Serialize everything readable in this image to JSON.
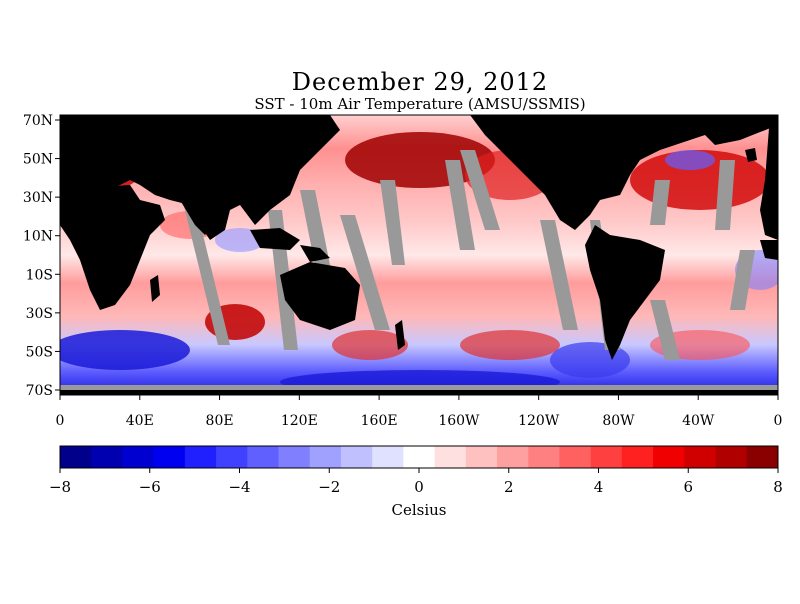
{
  "title": "December 29, 2012",
  "subtitle": "SST - 10m Air Temperature (AMSU/SSMIS)",
  "map": {
    "lat_ticks": [
      "70N",
      "50N",
      "30N",
      "10N",
      "10S",
      "30S",
      "50S",
      "70S"
    ],
    "lon_ticks": [
      "0",
      "40E",
      "80E",
      "120E",
      "160E",
      "160W",
      "120W",
      "80W",
      "40W",
      "0"
    ],
    "colors": {
      "land": "#000000",
      "missing_data": "#999999",
      "warm": "#cc0000",
      "cool": "#0000cc"
    }
  },
  "colorbar": {
    "tick_labels": [
      "−8",
      "−6",
      "−4",
      "−2",
      "0",
      "2",
      "4",
      "6",
      "8"
    ],
    "label": "Celsius",
    "min": -8,
    "max": 8,
    "colors": [
      "#00008a",
      "#0000b0",
      "#0000d0",
      "#0000f0",
      "#2020ff",
      "#4040ff",
      "#6060ff",
      "#8080ff",
      "#a0a0ff",
      "#c0c0ff",
      "#e0e0ff",
      "#ffffff",
      "#ffe0e0",
      "#ffc0c0",
      "#ffa0a0",
      "#ff8080",
      "#ff6060",
      "#ff4040",
      "#ff2020",
      "#f00000",
      "#d00000",
      "#b00000",
      "#8a0000"
    ]
  }
}
